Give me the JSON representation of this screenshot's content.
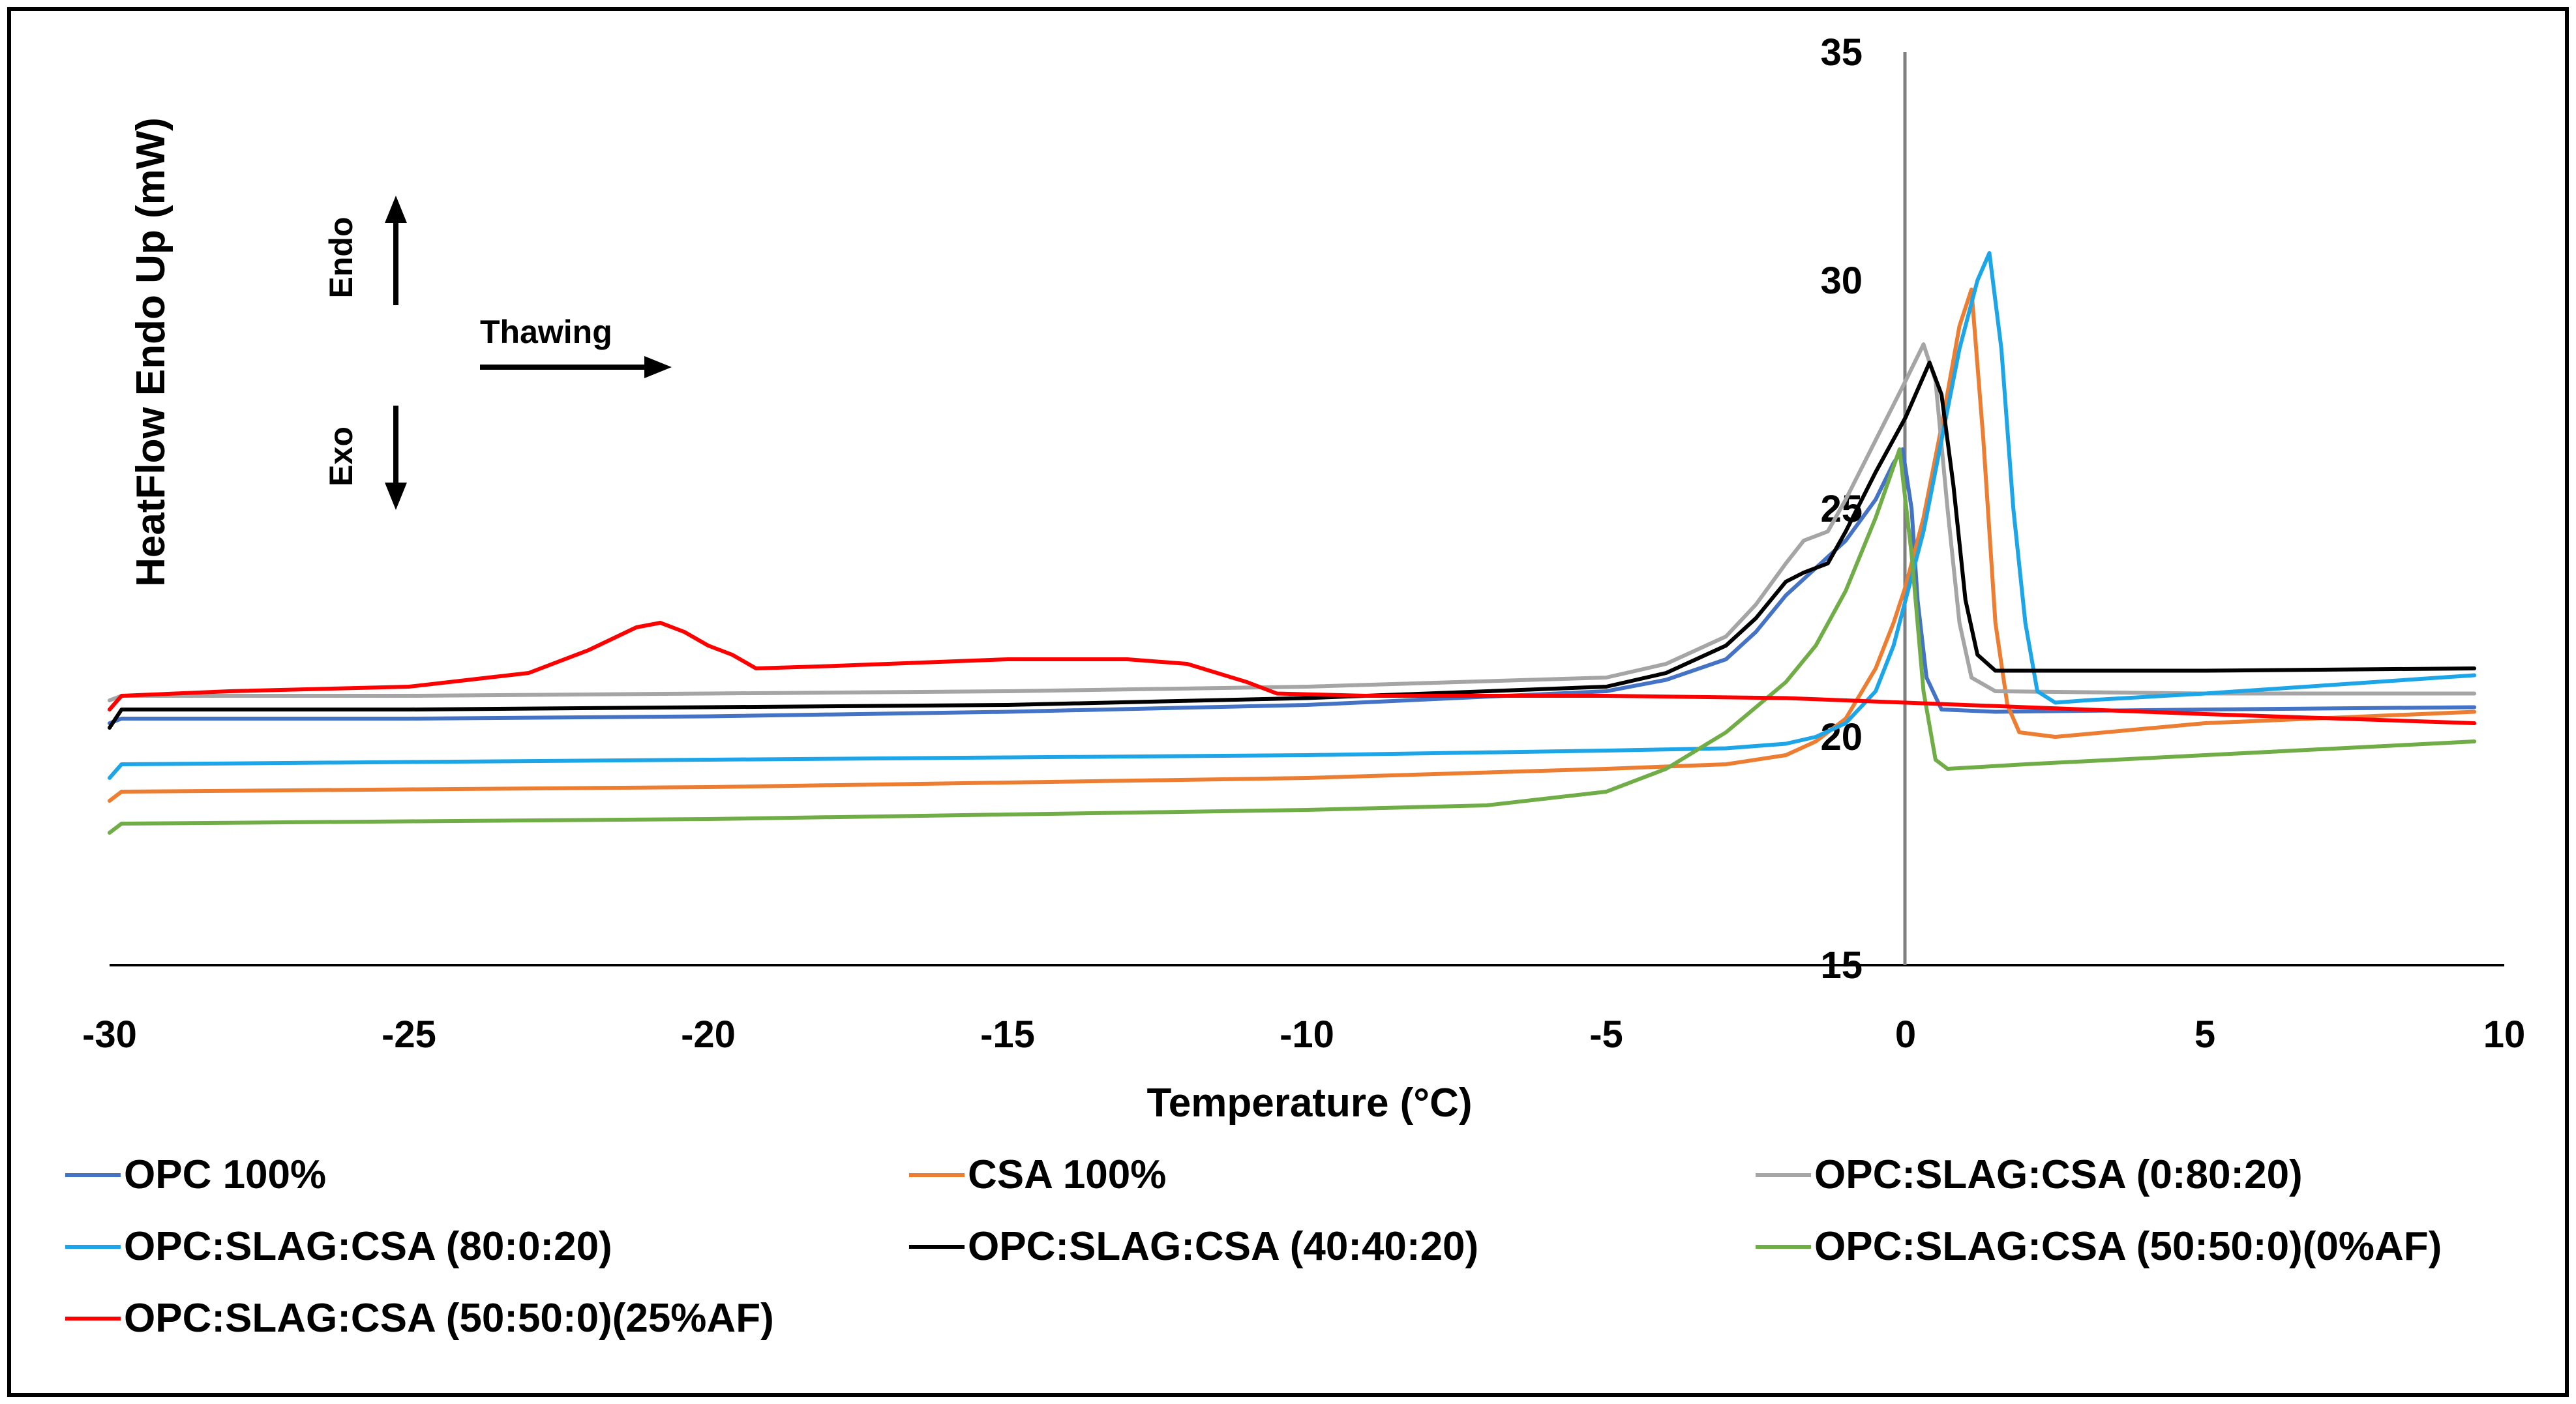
{
  "chart_data": {
    "type": "line",
    "title": "",
    "xlabel": "Temperature (°C)",
    "ylabel": "HeatFlow Endo Up (mW)",
    "xlim": [
      -30,
      10
    ],
    "ylim": [
      15,
      35
    ],
    "x_ticks": [
      "-30",
      "-25",
      "-20",
      "-15",
      "-10",
      "-5",
      "0",
      "5",
      "10"
    ],
    "y_ticks": [
      "15",
      "20",
      "25",
      "30",
      "35"
    ],
    "grid": false,
    "legend_position": "bottom",
    "annotations": {
      "endo": "Endo",
      "exo": "Exo",
      "thawing": "Thawing"
    },
    "series": [
      {
        "name": "OPC 100%",
        "color": "#4472C4",
        "points": [
          [
            -30,
            20.3
          ],
          [
            -29.8,
            20.4
          ],
          [
            -25,
            20.4
          ],
          [
            -20,
            20.45
          ],
          [
            -15,
            20.55
          ],
          [
            -10,
            20.7
          ],
          [
            -5,
            21.0
          ],
          [
            -4,
            21.25
          ],
          [
            -3,
            21.7
          ],
          [
            -2.5,
            22.3
          ],
          [
            -2,
            23.1
          ],
          [
            -1.5,
            23.7
          ],
          [
            -1.0,
            24.3
          ],
          [
            -0.5,
            25.2
          ],
          [
            -0.2,
            26.0
          ],
          [
            -0.05,
            26.3
          ],
          [
            0.1,
            25.0
          ],
          [
            0.2,
            23.0
          ],
          [
            0.35,
            21.3
          ],
          [
            0.6,
            20.6
          ],
          [
            1.5,
            20.55
          ],
          [
            5,
            20.6
          ],
          [
            9.5,
            20.65
          ]
        ]
      },
      {
        "name": "CSA 100%",
        "color": "#ED7D31",
        "points": [
          [
            -30,
            18.6
          ],
          [
            -29.8,
            18.8
          ],
          [
            -25,
            18.85
          ],
          [
            -20,
            18.9
          ],
          [
            -15,
            19.0
          ],
          [
            -10,
            19.1
          ],
          [
            -5,
            19.3
          ],
          [
            -3,
            19.4
          ],
          [
            -2,
            19.6
          ],
          [
            -1.5,
            19.9
          ],
          [
            -1.0,
            20.4
          ],
          [
            -0.5,
            21.5
          ],
          [
            -0.2,
            22.5
          ],
          [
            0,
            23.3
          ],
          [
            0.3,
            24.8
          ],
          [
            0.6,
            26.8
          ],
          [
            0.9,
            29.0
          ],
          [
            1.1,
            29.8
          ],
          [
            1.3,
            26.5
          ],
          [
            1.5,
            22.5
          ],
          [
            1.7,
            20.7
          ],
          [
            1.9,
            20.1
          ],
          [
            2.5,
            20.0
          ],
          [
            5,
            20.3
          ],
          [
            9.5,
            20.55
          ]
        ]
      },
      {
        "name": "OPC:SLAG:CSA (0:80:20)",
        "color": "#A5A5A5",
        "points": [
          [
            -30,
            20.8
          ],
          [
            -29.8,
            20.9
          ],
          [
            -25,
            20.9
          ],
          [
            -20,
            20.95
          ],
          [
            -15,
            21.0
          ],
          [
            -10,
            21.1
          ],
          [
            -5,
            21.3
          ],
          [
            -4,
            21.6
          ],
          [
            -3,
            22.2
          ],
          [
            -2.5,
            22.9
          ],
          [
            -2,
            23.8
          ],
          [
            -1.7,
            24.3
          ],
          [
            -1.3,
            24.5
          ],
          [
            -1.0,
            25.2
          ],
          [
            -0.5,
            26.5
          ],
          [
            0,
            27.8
          ],
          [
            0.3,
            28.6
          ],
          [
            0.5,
            27.8
          ],
          [
            0.7,
            25.0
          ],
          [
            0.9,
            22.5
          ],
          [
            1.1,
            21.3
          ],
          [
            1.5,
            21.0
          ],
          [
            5,
            20.95
          ],
          [
            9.5,
            20.95
          ]
        ]
      },
      {
        "name": "OPC:SLAG:CSA (80:0:20)",
        "color": "#1CA6E8",
        "points": [
          [
            -30,
            19.1
          ],
          [
            -29.8,
            19.4
          ],
          [
            -25,
            19.45
          ],
          [
            -20,
            19.5
          ],
          [
            -15,
            19.55
          ],
          [
            -10,
            19.6
          ],
          [
            -5,
            19.7
          ],
          [
            -3,
            19.75
          ],
          [
            -2,
            19.85
          ],
          [
            -1.5,
            20.0
          ],
          [
            -1.0,
            20.3
          ],
          [
            -0.5,
            21.0
          ],
          [
            -0.2,
            22.0
          ],
          [
            0,
            23.0
          ],
          [
            0.3,
            24.5
          ],
          [
            0.6,
            26.5
          ],
          [
            0.9,
            28.5
          ],
          [
            1.2,
            30.0
          ],
          [
            1.4,
            30.6
          ],
          [
            1.6,
            28.5
          ],
          [
            1.8,
            25.0
          ],
          [
            2.0,
            22.5
          ],
          [
            2.2,
            21.0
          ],
          [
            2.5,
            20.75
          ],
          [
            3,
            20.8
          ],
          [
            5,
            20.95
          ],
          [
            9.5,
            21.35
          ]
        ]
      },
      {
        "name": "OPC:SLAG:CSA (40:40:20)",
        "color": "#000000",
        "points": [
          [
            -30,
            20.2
          ],
          [
            -29.8,
            20.6
          ],
          [
            -25,
            20.6
          ],
          [
            -20,
            20.65
          ],
          [
            -15,
            20.7
          ],
          [
            -10,
            20.85
          ],
          [
            -5,
            21.1
          ],
          [
            -4,
            21.4
          ],
          [
            -3,
            22.0
          ],
          [
            -2.5,
            22.6
          ],
          [
            -2,
            23.4
          ],
          [
            -1.7,
            23.6
          ],
          [
            -1.3,
            23.8
          ],
          [
            -1.0,
            24.5
          ],
          [
            -0.5,
            25.8
          ],
          [
            0,
            27.0
          ],
          [
            0.4,
            28.2
          ],
          [
            0.6,
            27.5
          ],
          [
            0.8,
            25.5
          ],
          [
            1.0,
            23.0
          ],
          [
            1.2,
            21.8
          ],
          [
            1.5,
            21.45
          ],
          [
            3,
            21.45
          ],
          [
            5,
            21.45
          ],
          [
            9.5,
            21.5
          ]
        ]
      },
      {
        "name": "OPC:SLAG:CSA (50:50:0)(0%AF)",
        "color": "#70AD47",
        "points": [
          [
            -30,
            17.9
          ],
          [
            -29.8,
            18.1
          ],
          [
            -25,
            18.15
          ],
          [
            -20,
            18.2
          ],
          [
            -15,
            18.3
          ],
          [
            -10,
            18.4
          ],
          [
            -7,
            18.5
          ],
          [
            -5,
            18.8
          ],
          [
            -4,
            19.3
          ],
          [
            -3,
            20.1
          ],
          [
            -2,
            21.2
          ],
          [
            -1.5,
            22.0
          ],
          [
            -1.0,
            23.2
          ],
          [
            -0.5,
            24.8
          ],
          [
            -0.1,
            26.3
          ],
          [
            0.1,
            24.0
          ],
          [
            0.3,
            21.0
          ],
          [
            0.5,
            19.5
          ],
          [
            0.7,
            19.3
          ],
          [
            2,
            19.4
          ],
          [
            5,
            19.6
          ],
          [
            9.5,
            19.9
          ]
        ]
      },
      {
        "name": "OPC:SLAG:CSA (50:50:0)(25%AF)",
        "color": "#FF0000",
        "points": [
          [
            -30,
            20.6
          ],
          [
            -29.8,
            20.9
          ],
          [
            -28,
            21.0
          ],
          [
            -25,
            21.1
          ],
          [
            -23,
            21.4
          ],
          [
            -22,
            21.9
          ],
          [
            -21.2,
            22.4
          ],
          [
            -20.8,
            22.5
          ],
          [
            -20.4,
            22.3
          ],
          [
            -20,
            22.0
          ],
          [
            -19.6,
            21.8
          ],
          [
            -19.2,
            21.5
          ],
          [
            -18,
            21.55
          ],
          [
            -15,
            21.7
          ],
          [
            -13,
            21.7
          ],
          [
            -12,
            21.6
          ],
          [
            -11,
            21.2
          ],
          [
            -10.5,
            20.95
          ],
          [
            -9,
            20.9
          ],
          [
            -5,
            20.9
          ],
          [
            -2,
            20.85
          ],
          [
            0,
            20.75
          ],
          [
            2,
            20.65
          ],
          [
            5,
            20.5
          ],
          [
            9.5,
            20.3
          ]
        ]
      }
    ]
  }
}
